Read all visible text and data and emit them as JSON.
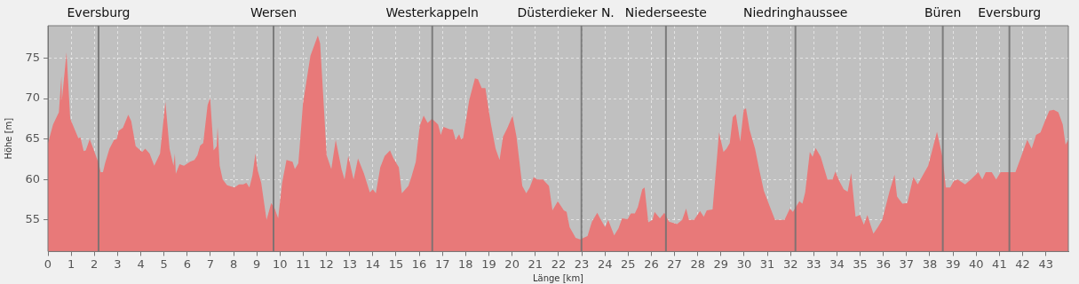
{
  "chart_data": {
    "type": "area",
    "xlabel": "Länge [km]",
    "ylabel": "Höhe [m]",
    "color": "#e87979",
    "grid": true,
    "xlim": [
      0,
      43.97
    ],
    "ylim": [
      51.1,
      79
    ],
    "xticks": [
      0,
      1,
      2,
      3,
      4,
      5,
      6,
      7,
      8,
      9,
      10,
      11,
      12,
      13,
      14,
      15,
      16,
      17,
      18,
      19,
      20,
      21,
      22,
      23,
      24,
      25,
      26,
      27,
      28,
      29,
      30,
      31,
      32,
      33,
      34,
      35,
      36,
      37,
      38,
      39,
      40,
      41,
      42,
      43
    ],
    "yticks": [
      55,
      60,
      65,
      70,
      75
    ],
    "x": [
      0,
      0.22,
      0.47,
      0.58,
      0.6,
      0.8,
      0.96,
      1.31,
      1.4,
      1.54,
      1.63,
      1.8,
      2.2,
      2.27,
      2.37,
      2.46,
      2.65,
      2.85,
      2.97,
      3.04,
      3.23,
      3.46,
      3.59,
      3.78,
      4.06,
      4.19,
      4.38,
      4.58,
      4.83,
      5.06,
      5.24,
      5.41,
      5.47,
      5.51,
      5.67,
      5.86,
      6.12,
      6.31,
      6.44,
      6.56,
      6.69,
      6.88,
      6.99,
      7.14,
      7.27,
      7.31,
      7.4,
      7.53,
      7.72,
      8.04,
      8.23,
      8.42,
      8.55,
      8.68,
      8.81,
      8.94,
      9.04,
      9.19,
      9.42,
      9.62,
      9.77,
      9.92,
      10.09,
      10.28,
      10.54,
      10.64,
      10.79,
      10.99,
      11.31,
      11.63,
      11.73,
      12.01,
      12.21,
      12.4,
      12.65,
      12.78,
      12.94,
      13.17,
      13.36,
      13.62,
      13.87,
      14.0,
      14.13,
      14.32,
      14.51,
      14.74,
      14.89,
      15.12,
      15.25,
      15.53,
      15.66,
      15.85,
      16.02,
      16.19,
      16.36,
      16.55,
      16.81,
      16.93,
      17.04,
      17.32,
      17.44,
      17.57,
      17.72,
      17.8,
      17.89,
      18.15,
      18.4,
      18.53,
      18.69,
      18.85,
      19.08,
      19.29,
      19.46,
      19.61,
      19.8,
      20.02,
      20.19,
      20.44,
      20.61,
      20.76,
      20.93,
      21.08,
      21.33,
      21.59,
      21.74,
      21.97,
      22.23,
      22.35,
      22.48,
      22.74,
      22.93,
      23.25,
      23.44,
      23.67,
      23.83,
      24.01,
      24.14,
      24.4,
      24.59,
      24.74,
      24.97,
      25.12,
      25.29,
      25.42,
      25.61,
      25.71,
      25.87,
      26.05,
      26.14,
      26.37,
      26.56,
      26.76,
      27.11,
      27.33,
      27.5,
      27.62,
      27.84,
      28.1,
      28.26,
      28.39,
      28.64,
      28.92,
      29.11,
      29.24,
      29.38,
      29.51,
      29.64,
      29.83,
      29.98,
      30.08,
      30.24,
      30.47,
      30.66,
      30.85,
      31.1,
      31.33,
      31.74,
      31.97,
      32.1,
      32.38,
      32.51,
      32.63,
      32.83,
      32.95,
      33.08,
      33.3,
      33.59,
      33.81,
      33.93,
      34.1,
      34.29,
      34.46,
      34.61,
      34.8,
      34.99,
      35.16,
      35.31,
      35.57,
      35.76,
      35.95,
      36.27,
      36.48,
      36.59,
      36.82,
      37.03,
      37.29,
      37.48,
      37.93,
      38.31,
      38.56,
      38.69,
      38.88,
      39.03,
      39.2,
      39.52,
      39.77,
      40.09,
      40.26,
      40.41,
      40.67,
      40.86,
      41.05,
      41.69,
      42.2,
      42.39,
      42.58,
      42.77,
      42.96,
      43.15,
      43.34,
      43.54,
      43.73,
      43.85,
      43.97
    ],
    "values": [
      64.5,
      66.8,
      68.3,
      72.8,
      69.8,
      75.7,
      67.5,
      65.1,
      65.2,
      63.5,
      63.6,
      65.0,
      61.9,
      60.9,
      60.9,
      62.0,
      63.8,
      64.9,
      65.0,
      66.0,
      66.4,
      68.0,
      67.2,
      64.1,
      63.4,
      63.8,
      63.2,
      61.7,
      63.2,
      69.6,
      63.8,
      61.7,
      63.2,
      60.7,
      61.9,
      61.7,
      62.2,
      62.4,
      63.0,
      64.2,
      64.5,
      69.2,
      70.1,
      63.6,
      64.1,
      66.5,
      61.7,
      60.0,
      59.3,
      59.0,
      59.4,
      59.4,
      59.6,
      59.0,
      60.5,
      63.2,
      61.1,
      59.6,
      55.0,
      57.1,
      56.4,
      55.2,
      59.6,
      62.4,
      62.2,
      61.3,
      62.0,
      69.4,
      75.3,
      77.8,
      76.8,
      63.0,
      61.3,
      64.9,
      61.3,
      60.0,
      62.9,
      60.0,
      62.6,
      60.7,
      58.4,
      58.8,
      58.3,
      61.5,
      62.9,
      63.6,
      62.6,
      61.5,
      58.3,
      59.2,
      60.3,
      62.2,
      66.6,
      67.9,
      67.0,
      67.5,
      66.8,
      65.5,
      66.5,
      66.2,
      66.2,
      64.9,
      65.6,
      65.0,
      65.1,
      69.8,
      72.5,
      72.4,
      71.3,
      71.3,
      67.0,
      63.8,
      62.4,
      65.3,
      66.4,
      67.9,
      65.3,
      59.2,
      58.3,
      59.0,
      60.3,
      60.0,
      60.0,
      59.2,
      56.2,
      57.3,
      56.2,
      56.0,
      54.1,
      52.8,
      52.6,
      53.0,
      54.8,
      55.9,
      55.0,
      54.1,
      55.0,
      53.1,
      54.0,
      55.2,
      55.1,
      55.8,
      55.8,
      56.6,
      58.8,
      59.0,
      54.7,
      55.0,
      56.0,
      55.2,
      55.9,
      54.8,
      54.5,
      55.0,
      56.4,
      55.0,
      55.0,
      56.1,
      55.4,
      56.2,
      56.3,
      65.8,
      63.4,
      63.8,
      64.5,
      67.7,
      68.1,
      64.7,
      68.6,
      68.8,
      66.1,
      63.8,
      61.1,
      58.6,
      56.7,
      55.0,
      55.0,
      56.4,
      56.0,
      57.3,
      57.0,
      58.4,
      63.4,
      62.8,
      63.9,
      62.8,
      60.0,
      60.0,
      61.0,
      59.8,
      58.8,
      58.5,
      60.8,
      55.4,
      55.6,
      54.4,
      55.6,
      53.3,
      54.1,
      55.0,
      58.6,
      60.6,
      57.9,
      57.0,
      57.1,
      60.3,
      59.4,
      61.7,
      65.9,
      62.6,
      59.0,
      59.0,
      59.8,
      60.0,
      59.4,
      60.0,
      60.9,
      60.0,
      60.9,
      60.9,
      60.0,
      60.9,
      60.9,
      64.9,
      63.8,
      65.5,
      65.8,
      67.2,
      68.5,
      68.6,
      68.3,
      66.8,
      64.3,
      64.9
    ],
    "ref_lines": [
      {
        "axis": "x",
        "value": 2.18,
        "label": "Eversburg",
        "color": "#707070"
      },
      {
        "axis": "x",
        "value": 9.72,
        "label": "Wersen",
        "color": "#707070"
      },
      {
        "axis": "x",
        "value": 16.56,
        "label": "Westerkappeln",
        "color": "#707070"
      },
      {
        "axis": "x",
        "value": 22.99,
        "label": "Düsterdieker N.",
        "color": "#707070"
      },
      {
        "axis": "x",
        "value": 26.63,
        "label": "Niederseeste",
        "color": "#707070"
      },
      {
        "axis": "x",
        "value": 32.21,
        "label": "Niedringhaussee",
        "color": "#707070"
      },
      {
        "axis": "x",
        "value": 38.56,
        "label": "Büren",
        "color": "#707070"
      },
      {
        "axis": "x",
        "value": 41.43,
        "label": "Eversburg",
        "color": "#707070"
      }
    ]
  }
}
